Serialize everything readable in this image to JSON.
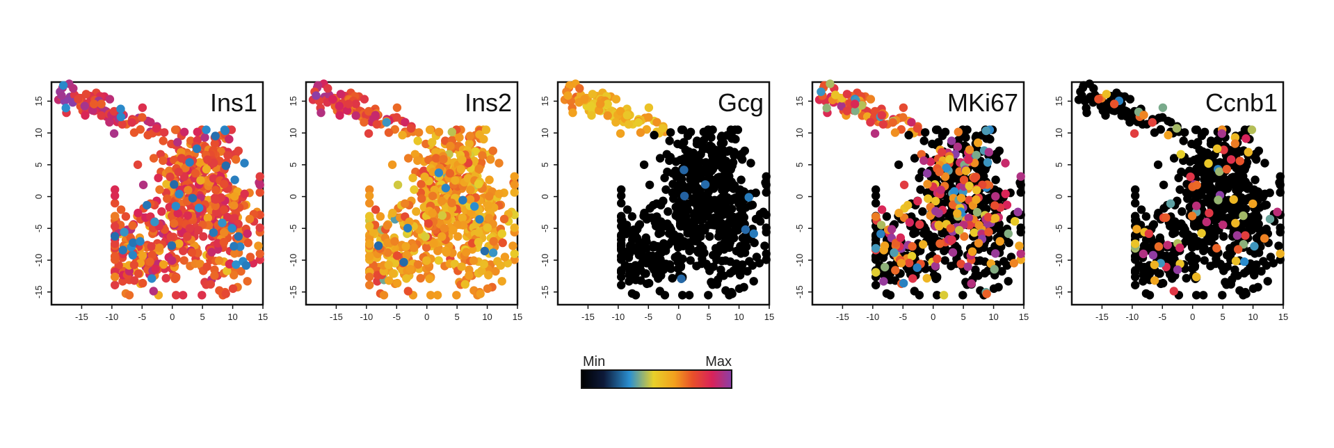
{
  "colors": {
    "scale": [
      "#000000",
      "#1f3a78",
      "#2b8fd0",
      "#e8d02a",
      "#f2a01e",
      "#e8502a",
      "#d8235a",
      "#8a3fa8"
    ],
    "axis": "#111111"
  },
  "colorbar": {
    "min_label": "Min",
    "max_label": "Max"
  },
  "chart_data": [
    {
      "type": "scatter",
      "title": "Ins1",
      "xlim": [
        -20,
        15
      ],
      "ylim": [
        -17,
        18
      ],
      "x_ticks": [
        "-15",
        "-10",
        "-5",
        "0",
        "5",
        "10",
        "15"
      ],
      "y_ticks": [
        "-15",
        "-10",
        "-5",
        "0",
        "5",
        "10",
        "15"
      ],
      "x_tick_values": [
        -15,
        -10,
        -5,
        0,
        5,
        10,
        15
      ],
      "y_tick_values": [
        -15,
        -10,
        -5,
        0,
        5,
        10,
        15
      ],
      "expression_profile": {
        "base_level": 0.72,
        "spread": 0.1,
        "outlier_fraction": 0.04,
        "outlier_level": 0.22,
        "top_cluster_level": 0.95
      },
      "grid": false
    },
    {
      "type": "scatter",
      "title": "Ins2",
      "xlim": [
        -20,
        15
      ],
      "ylim": [
        -17,
        18
      ],
      "x_ticks": [
        "-15",
        "-10",
        "-5",
        "0",
        "5",
        "10",
        "15"
      ],
      "y_ticks": [
        "-15",
        "-10",
        "-5",
        "0",
        "5",
        "10",
        "15"
      ],
      "x_tick_values": [
        -15,
        -10,
        -5,
        0,
        5,
        10,
        15
      ],
      "y_tick_values": [
        -15,
        -10,
        -5,
        0,
        5,
        10,
        15
      ],
      "expression_profile": {
        "base_level": 0.58,
        "spread": 0.08,
        "outlier_fraction": 0.02,
        "outlier_level": 0.22,
        "top_cluster_level": 0.9
      },
      "grid": false
    },
    {
      "type": "scatter",
      "title": "Gcg",
      "xlim": [
        -20,
        15
      ],
      "ylim": [
        -17,
        18
      ],
      "x_ticks": [
        "-15",
        "-10",
        "-5",
        "0",
        "5",
        "10",
        "15"
      ],
      "y_ticks": [
        "-15",
        "-10",
        "-5",
        "0",
        "5",
        "10",
        "15"
      ],
      "x_tick_values": [
        -15,
        -10,
        -5,
        0,
        5,
        10,
        15
      ],
      "y_tick_values": [
        -15,
        -10,
        -5,
        0,
        5,
        10,
        15
      ],
      "expression_profile": {
        "base_level": 0.0,
        "spread": 0.0,
        "outlier_fraction": 0.015,
        "outlier_level": 0.2,
        "top_cluster_level": 0.6
      },
      "grid": false
    },
    {
      "type": "scatter",
      "title": "MKi67",
      "xlim": [
        -20,
        15
      ],
      "ylim": [
        -17,
        18
      ],
      "x_ticks": [
        "-15",
        "-10",
        "-5",
        "0",
        "5",
        "10",
        "15"
      ],
      "y_ticks": [
        "-15",
        "-10",
        "-5",
        "0",
        "5",
        "10",
        "15"
      ],
      "x_tick_values": [
        -15,
        -10,
        -5,
        0,
        5,
        10,
        15
      ],
      "y_tick_values": [
        -15,
        -10,
        -5,
        0,
        5,
        10,
        15
      ],
      "expression_profile": {
        "base_level": 0.0,
        "spread": 0.0,
        "outlier_fraction": 0.32,
        "outlier_level": -1,
        "top_cluster_level": 0.8
      },
      "grid": false
    },
    {
      "type": "scatter",
      "title": "Ccnb1",
      "xlim": [
        -20,
        15
      ],
      "ylim": [
        -17,
        18
      ],
      "x_ticks": [
        "-15",
        "-10",
        "-5",
        "0",
        "5",
        "10",
        "15"
      ],
      "y_ticks": [
        "-15",
        "-10",
        "-5",
        "0",
        "5",
        "10",
        "15"
      ],
      "x_tick_values": [
        -15,
        -10,
        -5,
        0,
        5,
        10,
        15
      ],
      "y_tick_values": [
        -15,
        -10,
        -5,
        0,
        5,
        10,
        15
      ],
      "expression_profile": {
        "base_level": 0.0,
        "spread": 0.0,
        "outlier_fraction": 0.12,
        "outlier_level": -1,
        "top_cluster_level": 0.0
      },
      "grid": false
    }
  ]
}
